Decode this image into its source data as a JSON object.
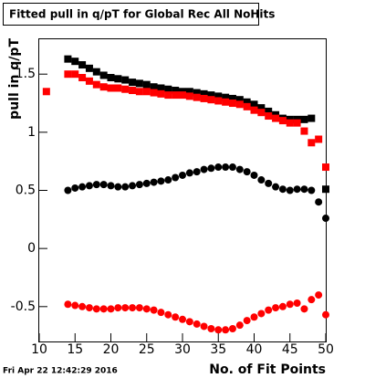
{
  "chart_data": {
    "type": "scatter",
    "title": "Fitted pull in q/pT for Global Rec All NoHits",
    "x_label": "No. of Fit Points",
    "y_label": "pull in q/pT",
    "footer": "Fri Apr 22 12:42:29 2016",
    "xlim": [
      10,
      50
    ],
    "xticks": [
      10,
      15,
      20,
      25,
      30,
      35,
      40,
      45,
      50
    ],
    "ylim": [
      -0.8,
      1.8
    ],
    "yticks": [
      -0.5,
      0,
      0.5,
      1,
      1.5
    ],
    "series": [
      {
        "color": "#000000",
        "marker": "square",
        "x": [
          14,
          15,
          16,
          17,
          18,
          19,
          20,
          21,
          22,
          23,
          24,
          25,
          26,
          27,
          28,
          29,
          30,
          31,
          32,
          33,
          34,
          35,
          36,
          37,
          38,
          39,
          40,
          41,
          42,
          43,
          44,
          45,
          46,
          47,
          48,
          50
        ],
        "values": [
          1.63,
          1.61,
          1.58,
          1.55,
          1.52,
          1.49,
          1.47,
          1.46,
          1.45,
          1.43,
          1.42,
          1.41,
          1.39,
          1.38,
          1.37,
          1.36,
          1.35,
          1.35,
          1.34,
          1.33,
          1.32,
          1.31,
          1.3,
          1.29,
          1.28,
          1.26,
          1.24,
          1.21,
          1.18,
          1.15,
          1.12,
          1.11,
          1.11,
          1.11,
          1.12,
          0.51
        ]
      },
      {
        "color": "#ff0000",
        "marker": "square",
        "x": [
          11,
          14,
          15,
          16,
          17,
          18,
          19,
          20,
          21,
          22,
          23,
          24,
          25,
          26,
          27,
          28,
          29,
          30,
          31,
          32,
          33,
          34,
          35,
          36,
          37,
          38,
          39,
          40,
          41,
          42,
          43,
          44,
          45,
          46,
          47,
          48,
          49,
          50
        ],
        "values": [
          1.35,
          1.5,
          1.5,
          1.47,
          1.44,
          1.41,
          1.39,
          1.38,
          1.38,
          1.37,
          1.36,
          1.35,
          1.35,
          1.34,
          1.33,
          1.32,
          1.32,
          1.32,
          1.31,
          1.3,
          1.29,
          1.28,
          1.27,
          1.26,
          1.25,
          1.24,
          1.22,
          1.19,
          1.17,
          1.14,
          1.12,
          1.1,
          1.08,
          1.08,
          1.01,
          0.91,
          0.94,
          0.7
        ]
      },
      {
        "color": "#000000",
        "marker": "circle",
        "x": [
          14,
          15,
          16,
          17,
          18,
          19,
          20,
          21,
          22,
          23,
          24,
          25,
          26,
          27,
          28,
          29,
          30,
          31,
          32,
          33,
          34,
          35,
          36,
          37,
          38,
          39,
          40,
          41,
          42,
          43,
          44,
          45,
          46,
          47,
          48,
          49,
          50
        ],
        "values": [
          0.5,
          0.52,
          0.53,
          0.54,
          0.55,
          0.55,
          0.54,
          0.53,
          0.53,
          0.54,
          0.55,
          0.56,
          0.57,
          0.58,
          0.59,
          0.61,
          0.63,
          0.65,
          0.66,
          0.68,
          0.69,
          0.7,
          0.7,
          0.7,
          0.68,
          0.66,
          0.63,
          0.59,
          0.56,
          0.53,
          0.51,
          0.5,
          0.51,
          0.51,
          0.5,
          0.4,
          0.26
        ]
      },
      {
        "color": "#ff0000",
        "marker": "circle",
        "x": [
          14,
          15,
          16,
          17,
          18,
          19,
          20,
          21,
          22,
          23,
          24,
          25,
          26,
          27,
          28,
          29,
          30,
          31,
          32,
          33,
          34,
          35,
          36,
          37,
          38,
          39,
          40,
          41,
          42,
          43,
          44,
          45,
          46,
          47,
          48,
          49,
          50
        ],
        "values": [
          -0.48,
          -0.49,
          -0.5,
          -0.51,
          -0.52,
          -0.52,
          -0.52,
          -0.51,
          -0.51,
          -0.51,
          -0.51,
          -0.52,
          -0.53,
          -0.55,
          -0.57,
          -0.59,
          -0.61,
          -0.63,
          -0.65,
          -0.67,
          -0.69,
          -0.7,
          -0.7,
          -0.69,
          -0.66,
          -0.62,
          -0.59,
          -0.56,
          -0.53,
          -0.51,
          -0.5,
          -0.48,
          -0.47,
          -0.52,
          -0.44,
          -0.4,
          -0.57
        ]
      }
    ]
  }
}
